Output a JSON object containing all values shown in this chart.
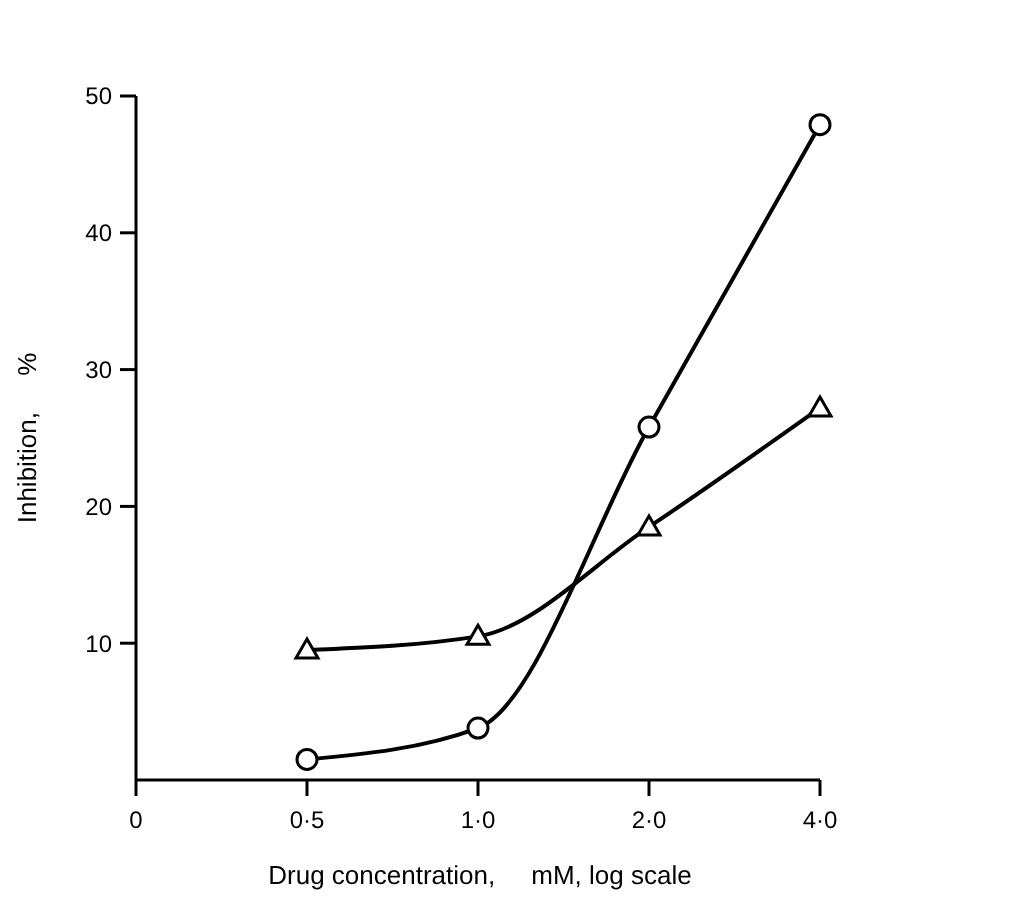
{
  "chart_data": {
    "type": "line",
    "xlabel": "Drug concentration,     mM, log scale",
    "ylabel": "Inhibition,     %",
    "categories": [
      "0",
      "0·5",
      "1·0",
      "2·0",
      "4·0"
    ],
    "series": [
      {
        "color": "#000000",
        "marker": "circle",
        "values": [
          null,
          1.5,
          3.8,
          25.8,
          47.9
        ]
      },
      {
        "color": "#000000",
        "marker": "triangle",
        "values": [
          null,
          9.5,
          10.5,
          18.5,
          27.2
        ]
      }
    ],
    "ylim": [
      0,
      50
    ],
    "yticks": [
      10,
      20,
      30,
      40,
      50
    ],
    "grid": false,
    "line_style": "solid"
  }
}
